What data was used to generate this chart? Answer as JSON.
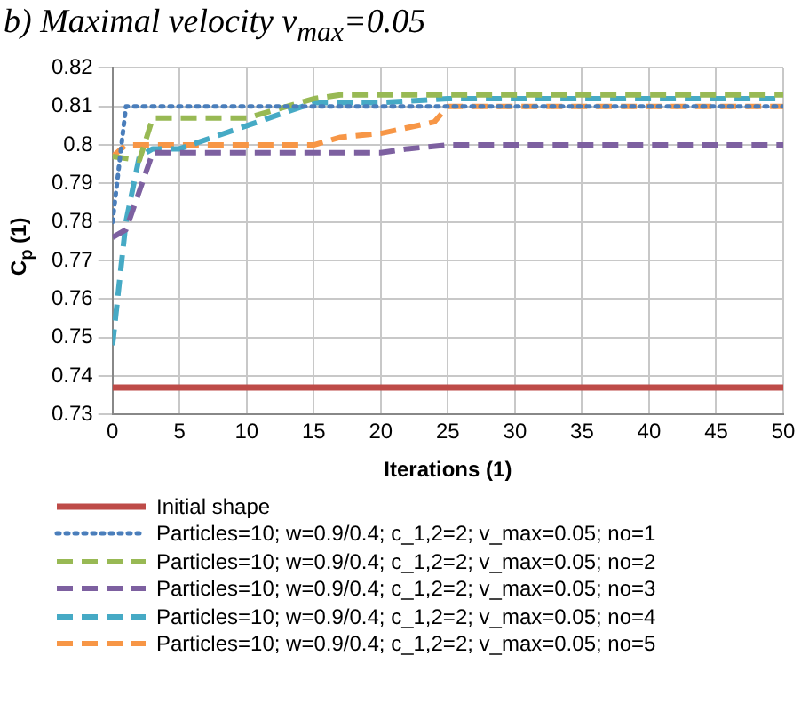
{
  "chart_data": {
    "type": "line",
    "title": "b) Maximal velocity v$_{max}$=0.05",
    "xlabel": "Iterations (1)",
    "ylabel": "C$_{p}$ (1)",
    "xlim": [
      0,
      50
    ],
    "xticks": [
      0,
      5,
      10,
      15,
      20,
      25,
      30,
      35,
      40,
      45,
      50
    ],
    "ylim": [
      0.73,
      0.82
    ],
    "yticks": [
      0.73,
      0.74,
      0.75,
      0.76,
      0.77,
      0.78,
      0.79,
      0.8,
      0.81,
      0.82
    ],
    "grid": true,
    "legend": "bottom",
    "marker": "none",
    "series": [
      {
        "name": "Initial shape",
        "color": "#be4b48",
        "line_style": "solid",
        "x": [
          0,
          50
        ],
        "values": [
          0.737,
          0.737
        ]
      },
      {
        "name": "Particles=10; w=0.9/0.4; c_1,2=2; v_max=0.05; no=1",
        "color": "#4a7ebb",
        "line_style": "dotted",
        "x": [
          0,
          1,
          50
        ],
        "values": [
          0.78,
          0.81,
          0.81
        ]
      },
      {
        "name": "Particles=10; w=0.9/0.4; c_1,2=2; v_max=0.05; no=2",
        "color": "#98b954",
        "line_style": "dashed",
        "x": [
          0,
          2,
          3,
          10,
          15,
          17,
          50
        ],
        "values": [
          0.797,
          0.796,
          0.807,
          0.807,
          0.812,
          0.813,
          0.813
        ]
      },
      {
        "name": "Particles=10; w=0.9/0.4; c_1,2=2; v_max=0.05; no=3",
        "color": "#7d60a0",
        "line_style": "dashed",
        "x": [
          0,
          1,
          3,
          20,
          22,
          25,
          50
        ],
        "values": [
          0.776,
          0.778,
          0.798,
          0.798,
          0.799,
          0.8,
          0.8
        ]
      },
      {
        "name": "Particles=10; w=0.9/0.4; c_1,2=2; v_max=0.05; no=4",
        "color": "#46aac5",
        "line_style": "dashed",
        "x": [
          0,
          1,
          2,
          3,
          5,
          15,
          20,
          25,
          50
        ],
        "values": [
          0.748,
          0.78,
          0.797,
          0.799,
          0.799,
          0.811,
          0.811,
          0.812,
          0.812
        ]
      },
      {
        "name": "Particles=10; w=0.9/0.4; c_1,2=2; v_max=0.05; no=5",
        "color": "#f79646",
        "line_style": "dashed",
        "x": [
          0,
          1,
          15,
          17,
          20,
          24,
          25,
          50
        ],
        "values": [
          0.797,
          0.8,
          0.8,
          0.802,
          0.803,
          0.806,
          0.81,
          0.81
        ]
      }
    ]
  }
}
